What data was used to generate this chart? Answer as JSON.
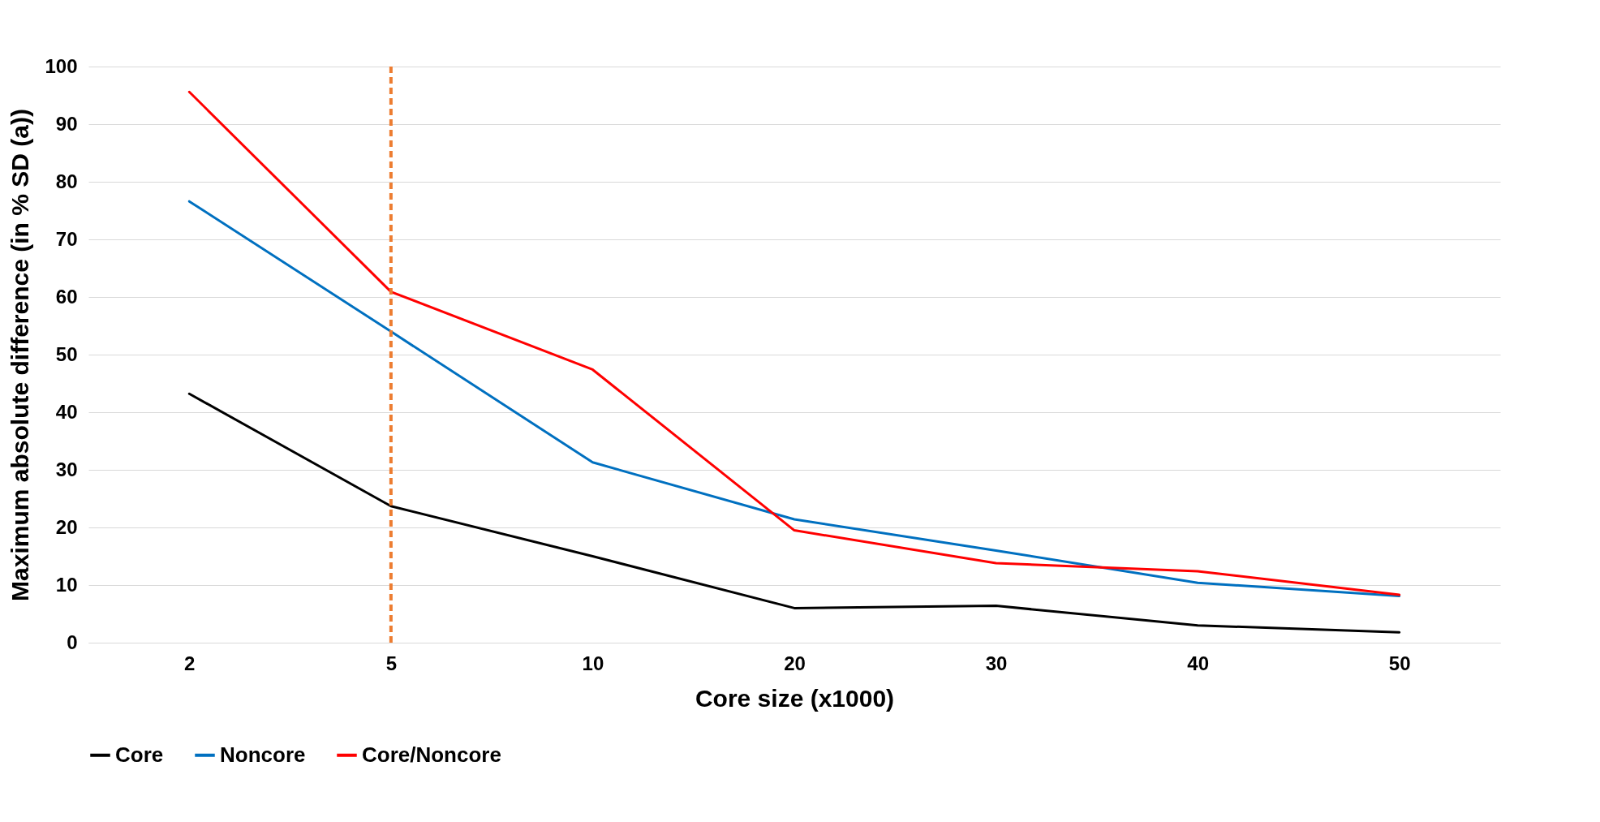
{
  "chart_data": {
    "type": "line",
    "xlabel": "Core size (x1000)",
    "ylabel": "Maximum absolute difference (in % SD (a))",
    "categories": [
      "2",
      "5",
      "10",
      "20",
      "30",
      "40",
      "50"
    ],
    "series": [
      {
        "name": "Core",
        "color": "#000000",
        "values": [
          43.2,
          23.7,
          15,
          6,
          6.4,
          3,
          1.8
        ]
      },
      {
        "name": "Noncore",
        "color": "#0070c0",
        "values": [
          76.6,
          54,
          31.3,
          21.4,
          16,
          10.4,
          8.1
        ]
      },
      {
        "name": "Core/Noncore",
        "color": "#ff0000",
        "values": [
          95.6,
          60.9,
          47.4,
          19.5,
          13.8,
          12.4,
          8.3
        ]
      }
    ],
    "ylim": [
      0,
      100
    ],
    "yticks": [
      0,
      10,
      20,
      30,
      40,
      50,
      60,
      70,
      80,
      90,
      100
    ],
    "grid": "y",
    "legend": "bottom",
    "ref_lines": [
      {
        "axis": "x",
        "value": "5",
        "color": "#ed7d31",
        "line_style": "dashed"
      }
    ]
  }
}
